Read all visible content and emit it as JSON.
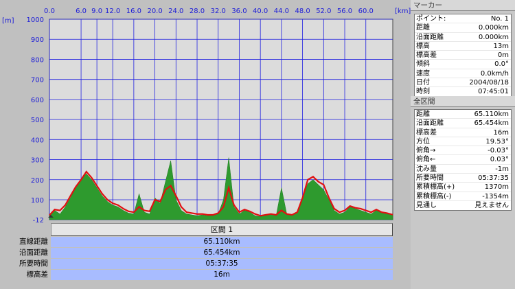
{
  "chart_data": {
    "type": "area",
    "x_unit": "[km]",
    "y_unit": "[m]",
    "x_ticks": [
      "0.0",
      "6.0",
      "9.0",
      "12.0",
      "16.0",
      "20.0",
      "24.0",
      "28.0",
      "32.0",
      "36.0",
      "40.0",
      "44.0",
      "48.0",
      "52.0",
      "56.0",
      "60.0"
    ],
    "x_tick_values": [
      0,
      6,
      9,
      12,
      16,
      20,
      24,
      28,
      32,
      36,
      40,
      44,
      48,
      52,
      56,
      60
    ],
    "y_ticks": [
      "1000",
      "900",
      "800",
      "700",
      "600",
      "500",
      "400",
      "300",
      "200",
      "100",
      "-12"
    ],
    "y_tick_values": [
      1000,
      900,
      800,
      700,
      600,
      500,
      400,
      300,
      200,
      100,
      -12
    ],
    "xlim": [
      0,
      65.11
    ],
    "ylim": [
      -12,
      1000
    ],
    "grid": true,
    "colors": {
      "plot_bg": "#dcdcdc",
      "grid": "#2020e0",
      "area": "#2e9a2e",
      "line": "#e01010"
    },
    "elevation_x": [
      0,
      1,
      2,
      3,
      4,
      5,
      6,
      7,
      8,
      9,
      10,
      11,
      12,
      13,
      14,
      15,
      16,
      17,
      18,
      19,
      20,
      21,
      22,
      23,
      24,
      25,
      26,
      27,
      28,
      29,
      30,
      31,
      32,
      33,
      34,
      35,
      36,
      37,
      38,
      39,
      40,
      41,
      42,
      43,
      44,
      45,
      46,
      47,
      48,
      49,
      50,
      51,
      52,
      53,
      54,
      55,
      56,
      57,
      58,
      59,
      60,
      61,
      62,
      63,
      64,
      65.11
    ],
    "elevation_y": [
      13,
      40,
      20,
      60,
      110,
      160,
      200,
      230,
      200,
      160,
      120,
      90,
      70,
      60,
      40,
      25,
      20,
      130,
      30,
      20,
      110,
      80,
      190,
      295,
      100,
      40,
      20,
      15,
      10,
      15,
      10,
      10,
      20,
      100,
      310,
      60,
      20,
      40,
      30,
      10,
      5,
      15,
      20,
      10,
      160,
      20,
      10,
      30,
      110,
      180,
      200,
      175,
      150,
      100,
      40,
      20,
      30,
      60,
      50,
      40,
      30,
      20,
      40,
      25,
      20,
      16
    ],
    "profile_y": [
      13,
      45,
      40,
      70,
      120,
      165,
      200,
      240,
      210,
      170,
      130,
      100,
      80,
      70,
      50,
      35,
      30,
      60,
      40,
      35,
      100,
      90,
      150,
      170,
      120,
      60,
      30,
      25,
      20,
      20,
      15,
      15,
      25,
      60,
      160,
      70,
      30,
      45,
      35,
      20,
      10,
      15,
      20,
      15,
      40,
      20,
      15,
      30,
      110,
      200,
      215,
      190,
      175,
      110,
      50,
      30,
      40,
      65,
      55,
      50,
      40,
      30,
      45,
      30,
      25,
      16
    ]
  },
  "section": {
    "header": "区間 1",
    "rows": [
      {
        "label": "直線距離",
        "value": "65.110km"
      },
      {
        "label": "沿面距離",
        "value": "65.454km"
      },
      {
        "label": "所要時間",
        "value": "05:37:35"
      },
      {
        "label": "標高差",
        "value": "16m"
      }
    ]
  },
  "marker_panel": {
    "title": "マーカー",
    "rows": [
      {
        "key": "ポイント:",
        "value": "No. 1"
      },
      {
        "key": "距離",
        "value": "0.000km"
      },
      {
        "key": "沿面距離",
        "value": "0.000km"
      },
      {
        "key": "標高",
        "value": "13m"
      },
      {
        "key": "標高差",
        "value": "0m"
      },
      {
        "key": "傾斜",
        "value": "0.0°"
      },
      {
        "key": "速度",
        "value": "0.0km/h"
      },
      {
        "key": "日付",
        "value": "2004/08/18"
      },
      {
        "key": "時刻",
        "value": "07:45:01"
      }
    ]
  },
  "total_panel": {
    "title": "全区間",
    "rows": [
      {
        "key": "距離",
        "value": "65.110km"
      },
      {
        "key": "沿面距離",
        "value": "65.454km"
      },
      {
        "key": "標高差",
        "value": "16m"
      },
      {
        "key": "方位",
        "value": "19.53°"
      },
      {
        "key": "俯角→",
        "value": "-0.03°"
      },
      {
        "key": "俯角←",
        "value": "0.03°"
      },
      {
        "key": "沈み量",
        "value": "-1m"
      },
      {
        "key": "所要時間",
        "value": "05:37:35"
      },
      {
        "key": "累積標高(+)",
        "value": "1370m"
      },
      {
        "key": "累積標高(-)",
        "value": "-1354m"
      },
      {
        "key": "見通し",
        "value": "見えません"
      }
    ]
  }
}
